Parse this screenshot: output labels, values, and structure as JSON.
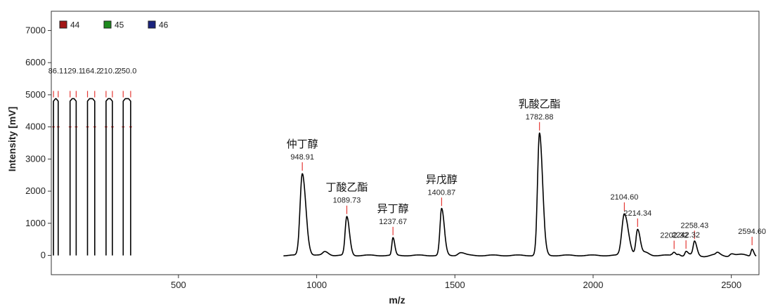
{
  "chart_data": {
    "type": "line",
    "xlabel": "m/z",
    "ylabel": "Intensity [mV]",
    "xlim": [
      40,
      2600
    ],
    "ylim": [
      -600,
      7600
    ],
    "x_ticks": [
      500,
      1000,
      1500,
      2000,
      2500
    ],
    "y_ticks": [
      0,
      1000,
      2000,
      3000,
      4000,
      5000,
      6000,
      7000
    ],
    "grid": false,
    "legend_position": "top-left",
    "legend": [
      {
        "label": "44",
        "color": "#a31515"
      },
      {
        "label": "45",
        "color": "#1d8a1d"
      },
      {
        "label": "46",
        "color": "#1a237e"
      }
    ],
    "trace_color": "#000000",
    "marker_color": "#e53935",
    "calibration_peaks": [
      {
        "label": "86.1",
        "start": 48,
        "end": 65
      },
      {
        "label": "129.1",
        "start": 108,
        "end": 130
      },
      {
        "label": "164.2",
        "start": 171,
        "end": 197
      },
      {
        "label": "210.2",
        "start": 238,
        "end": 261
      },
      {
        "label": "250.0",
        "start": 300,
        "end": 327
      }
    ],
    "calibration_height": 4800,
    "baseline_range": [
      880,
      2590
    ],
    "peaks": [
      {
        "label": "948.91",
        "x": 948,
        "y": 2550,
        "width": 8,
        "name": "仲丁醇"
      },
      {
        "label": "1089.73",
        "x": 1109,
        "y": 1200,
        "width": 6,
        "name": "丁酸乙酯"
      },
      {
        "label": "1237.67",
        "x": 1276,
        "y": 540,
        "width": 4,
        "name": "异丁醇"
      },
      {
        "label": "1400.87",
        "x": 1452,
        "y": 1450,
        "width": 6,
        "name": "异戊醇"
      },
      {
        "label": "1782.88",
        "x": 1806,
        "y": 3800,
        "width": 7,
        "name": "乳酸乙酯"
      },
      {
        "label": "2104.60",
        "x": 2113,
        "y": 1300,
        "width": 9,
        "name": ""
      },
      {
        "label": "2214.34",
        "x": 2161,
        "y": 800,
        "width": 6,
        "name": ""
      },
      {
        "label": "2202.32",
        "x": 2293,
        "y": 110,
        "width": 5,
        "name": ""
      },
      {
        "label": "2242.32",
        "x": 2336,
        "y": 120,
        "width": 4,
        "name": ""
      },
      {
        "label": "2258.43",
        "x": 2367,
        "y": 420,
        "width": 5,
        "name": ""
      },
      {
        "label": "2594.60",
        "x": 2575,
        "y": 230,
        "width": 4,
        "name": ""
      }
    ],
    "minor_peaks": [
      {
        "x": 1030,
        "y": 120,
        "width": 8
      },
      {
        "x": 1520,
        "y": 90,
        "width": 9
      },
      {
        "x": 2190,
        "y": 90,
        "width": 8
      },
      {
        "x": 2310,
        "y": 60,
        "width": 4
      },
      {
        "x": 2450,
        "y": 60,
        "width": 5
      },
      {
        "x": 2500,
        "y": 80,
        "width": 6
      }
    ]
  }
}
